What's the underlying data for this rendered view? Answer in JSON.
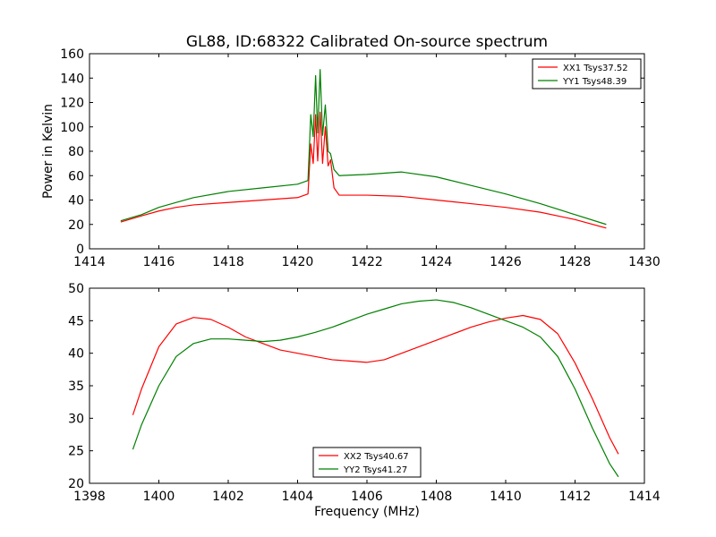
{
  "chart_data": [
    {
      "type": "line",
      "title": "GL88, ID:68322 Calibrated On-source spectrum",
      "xlabel": "",
      "ylabel": "Power in Kelvin",
      "xlim": [
        1414,
        1430
      ],
      "ylim": [
        0,
        160
      ],
      "xticks": [
        1414,
        1416,
        1418,
        1420,
        1422,
        1424,
        1426,
        1428,
        1430
      ],
      "yticks": [
        0,
        20,
        40,
        60,
        80,
        100,
        120,
        140,
        160
      ],
      "legend_position": "upper right",
      "series": [
        {
          "name": "XX1 Tsys37.52",
          "color": "#ff0000",
          "x": [
            1414.9,
            1415.5,
            1416.0,
            1416.5,
            1417.0,
            1418.0,
            1419.0,
            1420.0,
            1420.3,
            1420.38,
            1420.45,
            1420.52,
            1420.58,
            1420.65,
            1420.72,
            1420.8,
            1420.88,
            1420.95,
            1421.05,
            1421.2,
            1422.0,
            1423.0,
            1424.0,
            1425.0,
            1426.0,
            1427.0,
            1428.0,
            1428.9
          ],
          "y": [
            22,
            27,
            31,
            34,
            36,
            38,
            40,
            42,
            45,
            86,
            70,
            110,
            72,
            112,
            70,
            100,
            68,
            73,
            50,
            44,
            44,
            43,
            40,
            37,
            34,
            30,
            24,
            17
          ]
        },
        {
          "name": "YY1 Tsys48.39",
          "color": "#008000",
          "x": [
            1414.9,
            1415.5,
            1416.0,
            1416.5,
            1417.0,
            1418.0,
            1419.0,
            1420.0,
            1420.3,
            1420.38,
            1420.45,
            1420.52,
            1420.58,
            1420.65,
            1420.72,
            1420.8,
            1420.88,
            1420.95,
            1421.05,
            1421.2,
            1422.0,
            1423.0,
            1424.0,
            1425.0,
            1426.0,
            1427.0,
            1428.0,
            1428.9
          ],
          "y": [
            23,
            28,
            34,
            38,
            42,
            47,
            50,
            53,
            56,
            110,
            92,
            142,
            95,
            147,
            93,
            118,
            80,
            78,
            65,
            60,
            61,
            63,
            59,
            52,
            45,
            37,
            28,
            20
          ]
        }
      ]
    },
    {
      "type": "line",
      "title": "",
      "xlabel": "Frequency (MHz)",
      "ylabel": "",
      "xlim": [
        1398,
        1414
      ],
      "ylim": [
        20,
        50
      ],
      "xticks": [
        1398,
        1400,
        1402,
        1404,
        1406,
        1408,
        1410,
        1412,
        1414
      ],
      "yticks": [
        20,
        25,
        30,
        35,
        40,
        45,
        50
      ],
      "legend_position": "lower center",
      "series": [
        {
          "name": "XX2 Tsys40.67",
          "color": "#ff0000",
          "x": [
            1399.25,
            1399.5,
            1400.0,
            1400.5,
            1401.0,
            1401.5,
            1402.0,
            1402.5,
            1403.0,
            1403.5,
            1404.0,
            1404.5,
            1405.0,
            1405.5,
            1406.0,
            1406.5,
            1407.0,
            1407.5,
            1408.0,
            1408.5,
            1409.0,
            1409.5,
            1410.0,
            1410.5,
            1411.0,
            1411.5,
            1412.0,
            1412.5,
            1413.0,
            1413.25
          ],
          "y": [
            30.5,
            34.5,
            41,
            44.5,
            45.5,
            45.2,
            44,
            42.5,
            41.5,
            40.5,
            40,
            39.5,
            39,
            38.8,
            38.6,
            39,
            40,
            41,
            42,
            43,
            44,
            44.8,
            45.4,
            45.8,
            45.2,
            43,
            38.5,
            33,
            27,
            24.5
          ]
        },
        {
          "name": "YY2 Tsys41.27",
          "color": "#008000",
          "x": [
            1399.25,
            1399.5,
            1400.0,
            1400.5,
            1401.0,
            1401.5,
            1402.0,
            1402.5,
            1403.0,
            1403.5,
            1404.0,
            1404.5,
            1405.0,
            1405.5,
            1406.0,
            1406.5,
            1407.0,
            1407.5,
            1408.0,
            1408.5,
            1409.0,
            1409.5,
            1410.0,
            1410.5,
            1411.0,
            1411.5,
            1412.0,
            1412.5,
            1413.0,
            1413.25
          ],
          "y": [
            25.2,
            29,
            35,
            39.5,
            41.5,
            42.2,
            42.2,
            42,
            41.8,
            42,
            42.5,
            43.2,
            44,
            45,
            46,
            46.8,
            47.6,
            48,
            48.2,
            47.8,
            47,
            46,
            45,
            44,
            42.5,
            39.5,
            34.5,
            28.5,
            23,
            21
          ]
        }
      ]
    }
  ]
}
